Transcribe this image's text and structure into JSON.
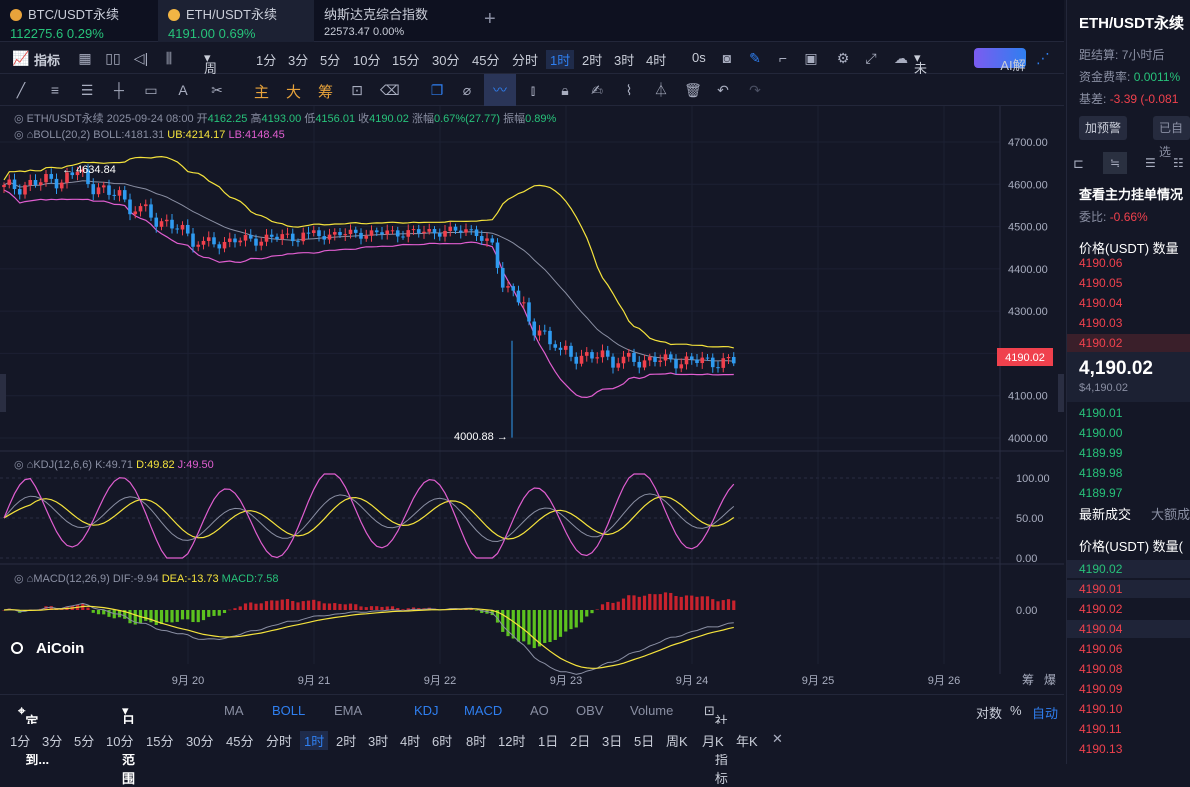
{
  "tabs": [
    {
      "name": "BTC/USDT永续",
      "price": "112275.6",
      "change": "0.29%"
    },
    {
      "name": "ETH/USDT永续",
      "price": "4191.00",
      "change": "0.69%"
    },
    {
      "name": "纳斯达克综合指数",
      "price": "22573.47",
      "change": "0.00%"
    }
  ],
  "toolbar": {
    "indicator": "指标",
    "period": "周期",
    "intervals": [
      "1分",
      "3分",
      "5分",
      "10分",
      "15分",
      "30分",
      "45分",
      "分时",
      "1时",
      "2时",
      "3时",
      "4时"
    ],
    "active_interval": "1时",
    "countdown": "0s",
    "layout_name": "未命名",
    "ai": "AI解读"
  },
  "drawtools": {
    "main": "主",
    "big": "大",
    "chip": "筹"
  },
  "ohlc": {
    "symbol": "ETH/USDT永续",
    "time": "2025-09-24 08:00",
    "open_label": "开",
    "open": "4162.25",
    "high_label": "高",
    "high": "4193.00",
    "low_label": "低",
    "low": "4156.01",
    "close_label": "收",
    "close": "4190.02",
    "chg_label": "涨幅",
    "chg": "0.67%(27.77)",
    "amp_label": "振幅",
    "amp": "0.89%"
  },
  "boll": {
    "label": "BOLL(20,2)",
    "mid": "BOLL:4181.31",
    "ub": "UB:4214.17",
    "lb": "LB:4148.45"
  },
  "kdj": {
    "label": "KDJ(12,6,6)",
    "k": "K:49.71",
    "d": "D:49.82",
    "j": "J:49.50"
  },
  "macd": {
    "label": "MACD(12,26,9)",
    "dif": "DIF:-9.94",
    "dea": "DEA:-13.73",
    "macd": "MACD:7.58"
  },
  "price_axis": [
    "4700.00",
    "4600.00",
    "4500.00",
    "4400.00",
    "4300.00",
    "4200.00",
    "4100.00",
    "4000.00"
  ],
  "kdj_axis": [
    "100.00",
    "50.00",
    "0.00"
  ],
  "macd_axis": [
    "0.00"
  ],
  "current_price_tag": "4190.02",
  "high_marker": "4634.84",
  "low_marker": "4000.88",
  "date_axis": [
    "9月 20",
    "9月 21",
    "9月 22",
    "9月 23",
    "9月 24",
    "9月 25",
    "9月 26"
  ],
  "corner": {
    "a": "筹",
    "b": "爆"
  },
  "logo": "AiCoin",
  "bottom_bar": {
    "locate": "定位到...",
    "range": "日期范围",
    "inds": [
      "MA",
      "BOLL",
      "EMA",
      "KDJ",
      "MACD",
      "AO",
      "OBV",
      "Volume"
    ],
    "community": "社区指标",
    "log": "对数",
    "pct": "%",
    "auto": "自动"
  },
  "bottom_intervals": [
    "1分",
    "3分",
    "5分",
    "10分",
    "15分",
    "30分",
    "45分",
    "分时",
    "1时",
    "2时",
    "3时",
    "4时",
    "6时",
    "8时",
    "12时",
    "1日",
    "2日",
    "3日",
    "5日",
    "周K",
    "月K",
    "年K"
  ],
  "colors": {
    "up": "#27c27a",
    "down": "#f0414d",
    "accent": "#2f7ff0",
    "ub": "#f5e33c",
    "lb": "#e05ed0",
    "mid": "#8a8fa3"
  },
  "right_panel": {
    "title": "ETH/USDT永续",
    "settle_label": "距结算:",
    "settle": "7小时后",
    "funding_label": "资金费率:",
    "funding": "0.0011%",
    "basis_label": "基差:",
    "basis": "-3.39 (-0.081",
    "alert_btn": "加预警",
    "added_btn": "已自选",
    "depth_title": "查看主力挂单情况",
    "ratio_label": "委比:",
    "ratio": "-0.66%",
    "book_header": "价格(USDT)  数量",
    "asks": [
      "4190.06",
      "4190.05",
      "4190.04",
      "4190.03",
      "4190.02"
    ],
    "mid_price": "4,190.02",
    "mid_sub": "$4,190.02",
    "bids": [
      "4190.01",
      "4190.00",
      "4189.99",
      "4189.98",
      "4189.97"
    ],
    "trades_tab": "最新成交",
    "big_tab": "大额成",
    "trades_header": "价格(USDT)  数量(",
    "trades": [
      {
        "p": "4190.02",
        "s": "up"
      },
      {
        "p": "4190.01",
        "s": "down"
      },
      {
        "p": "4190.02",
        "s": "down"
      },
      {
        "p": "4190.04",
        "s": "down"
      },
      {
        "p": "4190.06",
        "s": "down"
      },
      {
        "p": "4190.08",
        "s": "down"
      },
      {
        "p": "4190.09",
        "s": "down"
      },
      {
        "p": "4190.10",
        "s": "down"
      },
      {
        "p": "4190.11",
        "s": "down"
      },
      {
        "p": "4190.13",
        "s": "down"
      }
    ]
  }
}
